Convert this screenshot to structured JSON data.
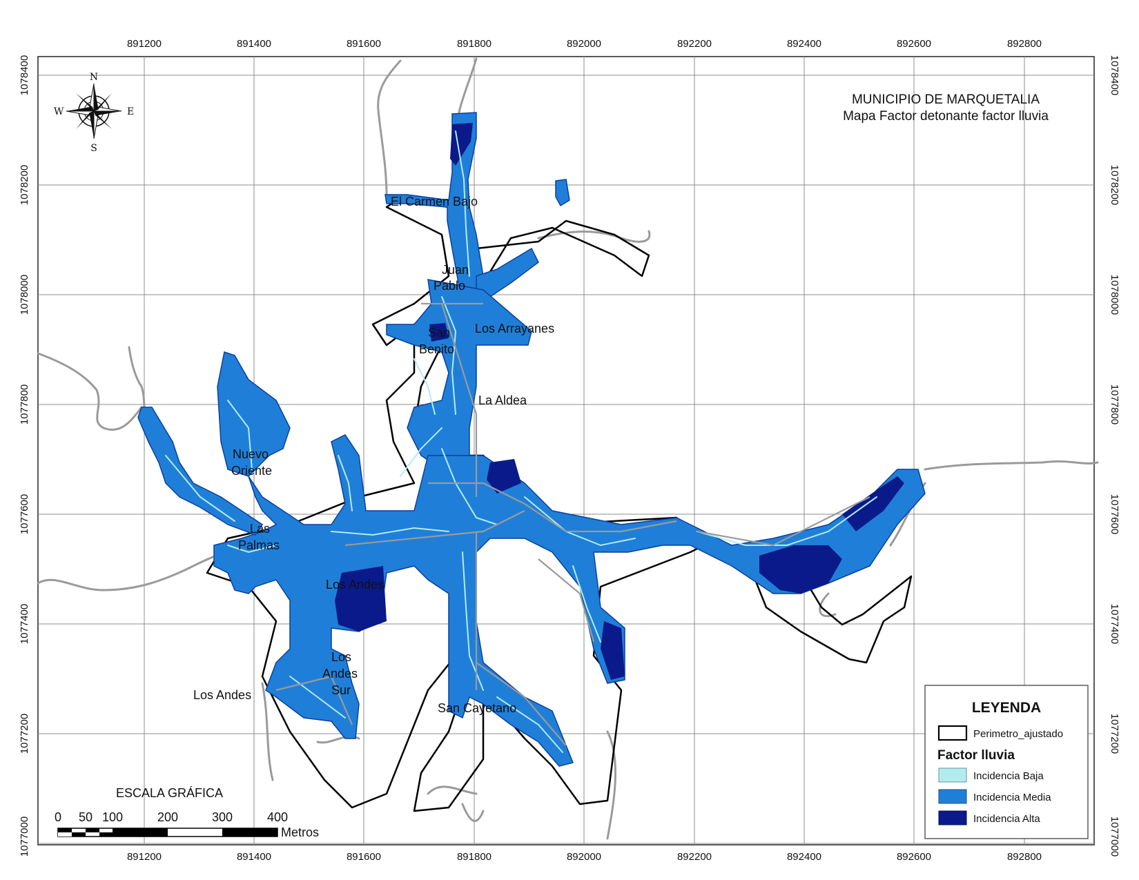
{
  "map": {
    "title": "MUNICIPIO DE MARQUETALIA",
    "subtitle": "Mapa Factor detonante factor lluvia"
  },
  "compass": {
    "n": "N",
    "s": "S",
    "e": "E",
    "w": "W"
  },
  "grid": {
    "x_labels": [
      "891200",
      "891400",
      "891600",
      "891800",
      "892000",
      "892200",
      "892400",
      "892600",
      "892800"
    ],
    "y_labels": [
      "1078400",
      "1078200",
      "1078000",
      "1077800",
      "1077600",
      "1077400",
      "1077200",
      "1077000"
    ]
  },
  "places": [
    {
      "id": "el-carmen-bajo",
      "label": "El Carmen Bajo"
    },
    {
      "id": "juan-pablo",
      "lines": [
        "Juan",
        "Pablo"
      ]
    },
    {
      "id": "los-arrayanes",
      "label": "Los Arrayanes"
    },
    {
      "id": "san-benito",
      "lines": [
        "San",
        "Benito"
      ]
    },
    {
      "id": "la-aldea",
      "label": "La Aldea"
    },
    {
      "id": "nuevo-oriente",
      "lines": [
        "Nuevo",
        "Oriente"
      ]
    },
    {
      "id": "las-palmas",
      "lines": [
        "Las",
        "Palmas"
      ]
    },
    {
      "id": "los-andes-center",
      "label": "Los Andes"
    },
    {
      "id": "los-andes-sur",
      "lines": [
        "Los",
        "Andes",
        "Sur"
      ]
    },
    {
      "id": "los-andes-west",
      "label": "Los Andes"
    },
    {
      "id": "san-cayetano",
      "label": "San Cayetano"
    }
  ],
  "legend": {
    "title": "LEYENDA",
    "perimeter_label": "Perimetro_ajustado",
    "factor_title": "Factor lluvia",
    "items": [
      {
        "label": "Incidencia Baja",
        "color": "#b3ecef"
      },
      {
        "label": "Incidencia Media",
        "color": "#1f7fd8"
      },
      {
        "label": "Incidencia Alta",
        "color": "#0a1a8a"
      }
    ]
  },
  "scale": {
    "title": "ESCALA GRÁFICA",
    "labels": [
      "0",
      "50",
      "100",
      "200",
      "300",
      "400"
    ],
    "unit": "Metros"
  },
  "colors": {
    "baja": "#b3ecef",
    "media": "#1f7fd8",
    "alta": "#0a1a8a",
    "road": "#9a9a9a",
    "grid": "#8c8c8c"
  }
}
